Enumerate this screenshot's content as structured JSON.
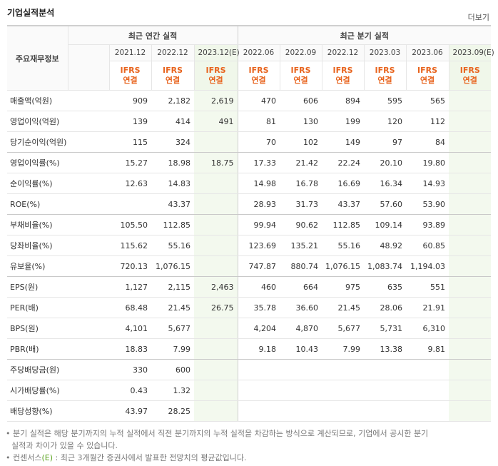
{
  "header": {
    "title": "기업실적분석",
    "more": "더보기"
  },
  "table": {
    "corner": "주요재무정보",
    "groups": [
      "최근 연간 실적",
      "최근 분기 실적"
    ],
    "columns": [
      {
        "label": "2021.12",
        "std": "IFRS",
        "basis": "연결"
      },
      {
        "label": "2022.12",
        "std": "IFRS",
        "basis": "연결"
      },
      {
        "label": "2023.12(E)",
        "std": "IFRS",
        "basis": "연결"
      },
      {
        "label": "2022.06",
        "std": "IFRS",
        "basis": "연결"
      },
      {
        "label": "2022.09",
        "std": "IFRS",
        "basis": "연결"
      },
      {
        "label": "2022.12",
        "std": "IFRS",
        "basis": "연결"
      },
      {
        "label": "2023.03",
        "std": "IFRS",
        "basis": "연결"
      },
      {
        "label": "2023.06",
        "std": "IFRS",
        "basis": "연결"
      },
      {
        "label": "2023.09(E)",
        "std": "IFRS",
        "basis": "연결"
      }
    ],
    "rows": [
      {
        "label": "매출액(억원)",
        "values": [
          "909",
          "2,182",
          "2,619",
          "470",
          "606",
          "894",
          "595",
          "565",
          null
        ]
      },
      {
        "label": "영업이익(억원)",
        "values": [
          "139",
          "414",
          "491",
          "81",
          "130",
          "199",
          "120",
          "112",
          null
        ]
      },
      {
        "label": "당기순이익(억원)",
        "values": [
          "115",
          "324",
          null,
          "70",
          "102",
          "149",
          "97",
          "84",
          null
        ]
      },
      {
        "label": "영업이익률(%)",
        "values": [
          "15.27",
          "18.98",
          "18.75",
          "17.33",
          "21.42",
          "22.24",
          "20.10",
          "19.80",
          null
        ]
      },
      {
        "label": "순이익률(%)",
        "values": [
          "12.63",
          "14.83",
          null,
          "14.98",
          "16.78",
          "16.69",
          "16.34",
          "14.93",
          null
        ]
      },
      {
        "label": "ROE(%)",
        "values": [
          null,
          "43.37",
          null,
          "28.93",
          "31.73",
          "43.37",
          "57.60",
          "53.90",
          null
        ]
      },
      {
        "label": "부채비율(%)",
        "values": [
          "105.50",
          "112.85",
          null,
          "99.94",
          "90.62",
          "112.85",
          "109.14",
          "93.89",
          null
        ]
      },
      {
        "label": "당좌비율(%)",
        "values": [
          "115.62",
          "55.16",
          null,
          "123.69",
          "135.21",
          "55.16",
          "48.92",
          "60.85",
          null
        ]
      },
      {
        "label": "유보율(%)",
        "values": [
          "720.13",
          "1,076.15",
          null,
          "747.87",
          "880.74",
          "1,076.15",
          "1,083.74",
          "1,194.03",
          null
        ]
      },
      {
        "label": "EPS(원)",
        "values": [
          "1,127",
          "2,115",
          "2,463",
          "460",
          "664",
          "975",
          "635",
          "551",
          null
        ]
      },
      {
        "label": "PER(배)",
        "values": [
          "68.48",
          "21.45",
          "26.75",
          "35.78",
          "36.60",
          "21.45",
          "28.06",
          "21.91",
          null
        ]
      },
      {
        "label": "BPS(원)",
        "values": [
          "4,101",
          "5,677",
          null,
          "4,204",
          "4,870",
          "5,677",
          "5,731",
          "6,310",
          null
        ]
      },
      {
        "label": "PBR(배)",
        "values": [
          "18.83",
          "7.99",
          null,
          "9.18",
          "10.43",
          "7.99",
          "13.38",
          "9.81",
          null
        ]
      },
      {
        "label": "주당배당금(원)",
        "values": [
          "330",
          "600",
          null,
          null,
          null,
          null,
          null,
          null,
          null
        ]
      },
      {
        "label": "시가배당률(%)",
        "values": [
          "0.43",
          "1.32",
          null,
          null,
          null,
          null,
          null,
          null,
          null
        ]
      },
      {
        "label": "배당성향(%)",
        "values": [
          "43.97",
          "28.25",
          null,
          null,
          null,
          null,
          null,
          null,
          null
        ]
      }
    ]
  },
  "notes": [
    {
      "text": "분기 실적은 해당 분기까지의 누적 실적에서 직전 분기까지의 누적 실적을 차감하는 방식으로 계산되므로, 기업에서 공시한 분기 실적과 차이가 있을 수 있습니다."
    },
    {
      "prefix": "컨센서스",
      "highlight": "(E)",
      "text": " : 최근 3개월간 증권사에서 발표한 전망치의 평균값입니다."
    }
  ]
}
